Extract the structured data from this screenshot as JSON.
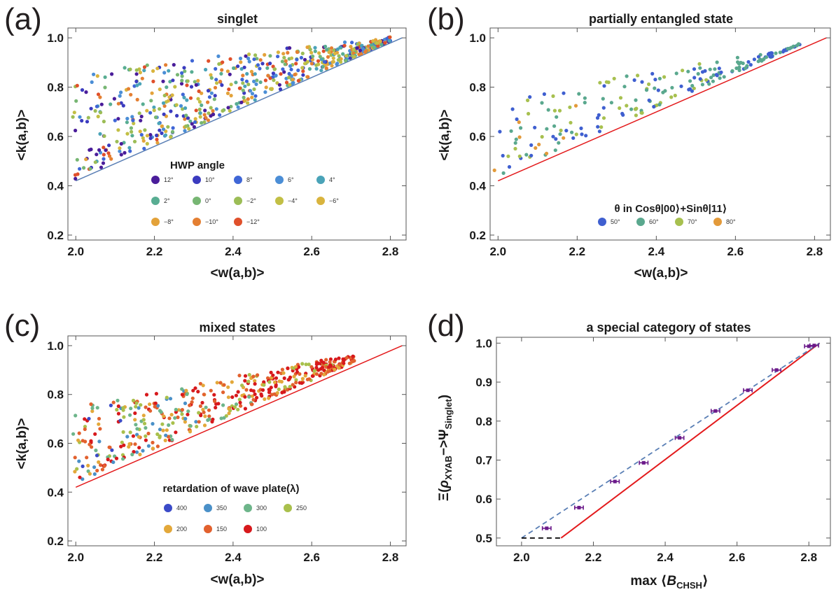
{
  "chart_data": [
    {
      "type": "scatter",
      "panel": "(a)",
      "title": "singlet",
      "xlabel": "<w(a,b)>",
      "ylabel": "<k(a,b)>",
      "xlim": [
        1.98,
        2.84
      ],
      "ylim": [
        0.18,
        1.04
      ],
      "xticks": [
        "2.0",
        "2.2",
        "2.4",
        "2.6",
        "2.8"
      ],
      "yticks": [
        "0.2",
        "0.4",
        "0.6",
        "0.8",
        "1.0"
      ],
      "legend_title": "HWP angle",
      "series": [
        {
          "name": "12°",
          "color": "#4a1d9a"
        },
        {
          "name": "10°",
          "color": "#3b3bbf"
        },
        {
          "name": "8°",
          "color": "#3f66d6"
        },
        {
          "name": "6°",
          "color": "#4b8ed6"
        },
        {
          "name": "4°",
          "color": "#4aa3b8"
        },
        {
          "name": "2°",
          "color": "#58ad92"
        },
        {
          "name": "0°",
          "color": "#77b673"
        },
        {
          "name": "−2°",
          "color": "#9cbd56"
        },
        {
          "name": "−4°",
          "color": "#c2bf45"
        },
        {
          "name": "−6°",
          "color": "#d9b43e"
        },
        {
          "name": "−8°",
          "color": "#e3a23a"
        },
        {
          "name": "−10°",
          "color": "#e47f32"
        },
        {
          "name": "−12°",
          "color": "#e0502b"
        }
      ],
      "bound_line": {
        "x": [
          2.0,
          2.83
        ],
        "y": [
          0.42,
          1.0
        ],
        "color": "#5a7fb5"
      },
      "cloud": {
        "x_range": [
          1.99,
          2.8
        ],
        "lower_gap": 0.01,
        "upper_y_at_xmin": 0.86,
        "upper_slope": 0.17
      }
    },
    {
      "type": "scatter",
      "panel": "(b)",
      "title": "partially entangled state",
      "xlabel": "<w(a,b)>",
      "ylabel": "<k(a,b)>",
      "xlim": [
        1.98,
        2.84
      ],
      "ylim": [
        0.18,
        1.04
      ],
      "xticks": [
        "2.0",
        "2.2",
        "2.4",
        "2.6",
        "2.8"
      ],
      "yticks": [
        "0.2",
        "0.4",
        "0.6",
        "0.8",
        "1.0"
      ],
      "legend_title": "θ in Cosθ|00⟩+Sinθ|11⟩",
      "series": [
        {
          "name": "50°",
          "color": "#3f5fd0"
        },
        {
          "name": "60°",
          "color": "#5aa88e"
        },
        {
          "name": "70°",
          "color": "#a7c04f"
        },
        {
          "name": "80°",
          "color": "#e39a3a"
        }
      ],
      "bound_line": {
        "x": [
          2.0,
          2.83
        ],
        "y": [
          0.42,
          1.0
        ],
        "color": "#e31a1c"
      },
      "cloud": {
        "x_range": [
          1.99,
          2.77
        ],
        "lower_gap": 0.02,
        "upper_y_at_xmin": 0.76,
        "upper_slope": 0.26
      }
    },
    {
      "type": "scatter",
      "panel": "(c)",
      "title": "mixed states",
      "xlabel": "<w(a,b)>",
      "ylabel": "<k(a,b)>",
      "xlim": [
        1.98,
        2.84
      ],
      "ylim": [
        0.18,
        1.04
      ],
      "xticks": [
        "2.0",
        "2.2",
        "2.4",
        "2.6",
        "2.8"
      ],
      "yticks": [
        "0.2",
        "0.4",
        "0.6",
        "0.8",
        "1.0"
      ],
      "legend_title": "retardation of wave plate(λ)",
      "series": [
        {
          "name": "400",
          "color": "#3b4bc8"
        },
        {
          "name": "350",
          "color": "#4a90c8"
        },
        {
          "name": "300",
          "color": "#6db58a"
        },
        {
          "name": "250",
          "color": "#a9c04c"
        },
        {
          "name": "200",
          "color": "#e3a83a"
        },
        {
          "name": "150",
          "color": "#e2612e"
        },
        {
          "name": "100",
          "color": "#d7191c"
        }
      ],
      "bound_line": {
        "x": [
          2.0,
          2.83
        ],
        "y": [
          0.42,
          1.0
        ],
        "color": "#e31a1c"
      },
      "cloud": {
        "x_range": [
          1.99,
          2.71
        ],
        "lower_gap": 0.02,
        "upper_y_at_xmin": 0.75,
        "upper_slope": 0.3
      }
    },
    {
      "type": "scatter",
      "panel": "(d)",
      "title": "a special category of states",
      "xlabel": "max ⟨B_CHSH⟩",
      "xlabel_main": "max ⟨",
      "xlabel_sym": "B",
      "xlabel_sub": "CHSH",
      "xlabel_close": "⟩",
      "ylabel": "Ξ(ρ_XYAB−>Ψ_Singlet)",
      "ylabel_parts": {
        "xi": "Ξ(",
        "rho": "ρ",
        "rho_sub": "XYAB",
        "arrow": "−>",
        "psi": "Ψ",
        "psi_sub": "Singlet",
        "close": ")"
      },
      "xlim": [
        1.93,
        2.86
      ],
      "ylim": [
        0.48,
        1.015
      ],
      "xticks": [
        "2.0",
        "2.2",
        "2.4",
        "2.6",
        "2.8"
      ],
      "yticks": [
        "0.5",
        "0.6",
        "0.7",
        "0.8",
        "0.9",
        "1.0"
      ],
      "points": {
        "x": [
          2.07,
          2.16,
          2.26,
          2.34,
          2.44,
          2.54,
          2.63,
          2.71,
          2.8,
          2.815
        ],
        "y": [
          0.525,
          0.578,
          0.645,
          0.693,
          0.757,
          0.826,
          0.879,
          0.931,
          0.992,
          0.994
        ],
        "xerr": 0.012,
        "color": "#6b1a8a"
      },
      "lines": [
        {
          "style": "solid",
          "color": "#e31a1c",
          "x": [
            2.11,
            2.83
          ],
          "y": [
            0.5,
            1.0
          ]
        },
        {
          "style": "dashed",
          "color": "#5a7fb5",
          "x": [
            2.0,
            2.83
          ],
          "y": [
            0.5,
            1.0
          ]
        },
        {
          "style": "dashed",
          "color": "#000000",
          "x": [
            2.0,
            2.11
          ],
          "y": [
            0.5,
            0.5
          ]
        }
      ]
    }
  ]
}
